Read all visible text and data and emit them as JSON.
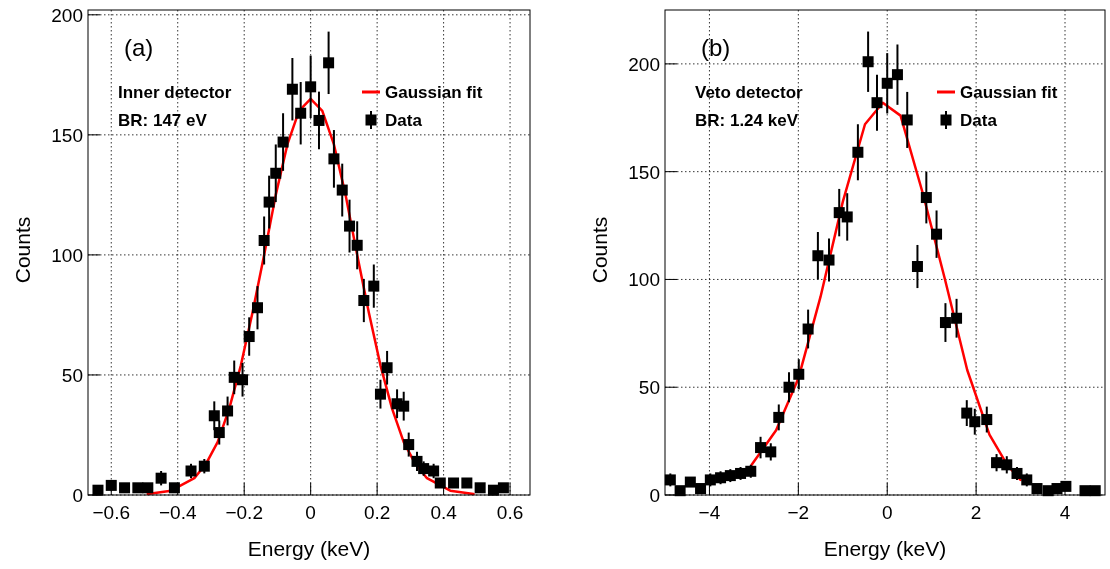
{
  "chart_data": [
    {
      "type": "scatter",
      "xlabel": "Energy (keV)",
      "ylabel": "Counts",
      "annotations": [
        "(a)",
        "Inner detector",
        "BR: 147 eV"
      ],
      "xlim": [
        -0.67,
        0.66
      ],
      "ylim": [
        0,
        202
      ],
      "xticks": [
        {
          "value": -0.6,
          "label": "−0.6"
        },
        {
          "value": -0.4,
          "label": "−0.4"
        },
        {
          "value": -0.2,
          "label": "−0.2"
        },
        0,
        0.2,
        0.4,
        0.6
      ],
      "yticks": [
        0,
        50,
        100,
        150,
        200
      ],
      "grid": true,
      "legend": "top right",
      "series": [
        {
          "name": "Gaussian fit",
          "type": "line",
          "color": "#ff0000",
          "line_style": "solid",
          "marker": "none",
          "x": [
            -0.49,
            -0.42,
            -0.35,
            -0.315,
            -0.28,
            -0.245,
            -0.21,
            -0.175,
            -0.14,
            -0.105,
            -0.07,
            -0.035,
            0,
            0.035,
            0.07,
            0.105,
            0.14,
            0.175,
            0.21,
            0.245,
            0.28,
            0.315,
            0.35,
            0.42,
            0.49
          ],
          "values": [
            0.4,
            1.8,
            7,
            13,
            22,
            36,
            54,
            76,
            100,
            125,
            146,
            160,
            165,
            160,
            146,
            125,
            100,
            76,
            54,
            36,
            22,
            13,
            7,
            1.8,
            0.4
          ]
        },
        {
          "name": "Data",
          "type": "scatter",
          "color": "#000000",
          "marker": "square",
          "x": [
            -0.64,
            -0.6,
            -0.56,
            -0.52,
            -0.49,
            -0.45,
            -0.41,
            -0.36,
            -0.32,
            -0.29,
            -0.275,
            -0.25,
            -0.23,
            -0.205,
            -0.185,
            -0.16,
            -0.14,
            -0.125,
            -0.105,
            -0.083,
            -0.055,
            -0.03,
            0,
            0.025,
            0.054,
            0.07,
            0.095,
            0.117,
            0.14,
            0.16,
            0.19,
            0.21,
            0.23,
            0.26,
            0.28,
            0.295,
            0.32,
            0.34,
            0.37,
            0.39,
            0.43,
            0.47,
            0.51,
            0.55,
            0.58
          ],
          "values": [
            2,
            4,
            3,
            3,
            3,
            7,
            3,
            10,
            12,
            33,
            26,
            35,
            49,
            48,
            66,
            78,
            106,
            122,
            134,
            147,
            169,
            159,
            170,
            156,
            180,
            140,
            127,
            112,
            104,
            81,
            87,
            42,
            53,
            38,
            37,
            21,
            14,
            11,
            10,
            5,
            5,
            5,
            3,
            2,
            3
          ],
          "errors": [
            1,
            2,
            2,
            2,
            2,
            3,
            2,
            3,
            3,
            6,
            5,
            6,
            7,
            7,
            8,
            9,
            10,
            11,
            12,
            12,
            13,
            13,
            13,
            12,
            13,
            12,
            11,
            11,
            10,
            9,
            9,
            6,
            7,
            6,
            6,
            5,
            4,
            3,
            3,
            2,
            2,
            2,
            2,
            1,
            2
          ]
        }
      ]
    },
    {
      "type": "scatter",
      "xlabel": "Energy (keV)",
      "ylabel": "Counts",
      "annotations": [
        "(b)",
        "Veto detector",
        "BR: 1.24 keV"
      ],
      "xlim": [
        -5,
        4.9
      ],
      "ylim": [
        0,
        225
      ],
      "xticks": [
        {
          "value": -4,
          "label": "−4"
        },
        {
          "value": -2,
          "label": "−2"
        },
        0,
        2,
        4
      ],
      "yticks": [
        0,
        50,
        100,
        150,
        200
      ],
      "grid": true,
      "legend": "top right",
      "series": [
        {
          "name": "Gaussian fit",
          "type": "line",
          "color": "#ff0000",
          "line_style": "solid",
          "marker": "none",
          "x": [
            -3.05,
            -2.5,
            -2,
            -1.5,
            -1,
            -0.5,
            -0.1,
            0.3,
            0.8,
            1.3,
            1.8,
            2.3,
            2.7,
            3.0
          ],
          "values": [
            14,
            30,
            54,
            92,
            136,
            172,
            182,
            176,
            140,
            100,
            58,
            28,
            14,
            7
          ]
        },
        {
          "name": "Data",
          "type": "scatter",
          "color": "#000000",
          "marker": "square",
          "x": [
            -4.88,
            -4.66,
            -4.43,
            -4.2,
            -3.98,
            -3.75,
            -3.53,
            -3.3,
            -3.07,
            -2.85,
            -2.62,
            -2.44,
            -2.21,
            -1.99,
            -1.78,
            -1.56,
            -1.31,
            -1.08,
            -0.9,
            -0.66,
            -0.43,
            -0.23,
            0,
            0.23,
            0.45,
            0.68,
            0.88,
            1.11,
            1.31,
            1.56,
            1.79,
            1.97,
            2.24,
            2.46,
            2.69,
            2.92,
            3.14,
            3.37,
            3.62,
            3.82,
            4.02,
            4.45,
            4.68
          ],
          "values": [
            7,
            2,
            6,
            3,
            7,
            8,
            9,
            10,
            11,
            22,
            20,
            36,
            50,
            56,
            77,
            111,
            109,
            131,
            129,
            159,
            201,
            182,
            191,
            195,
            174,
            106,
            138,
            121,
            80,
            82,
            38,
            34,
            35,
            15,
            14,
            10,
            7,
            3,
            2,
            3,
            4,
            2,
            2
          ],
          "errors": [
            3,
            1,
            2,
            2,
            3,
            3,
            3,
            3,
            3,
            5,
            4,
            6,
            7,
            7,
            9,
            11,
            10,
            11,
            11,
            13,
            14,
            13,
            14,
            14,
            13,
            10,
            12,
            11,
            9,
            9,
            6,
            6,
            6,
            4,
            4,
            3,
            3,
            2,
            1,
            2,
            2,
            1,
            1
          ]
        }
      ]
    }
  ]
}
